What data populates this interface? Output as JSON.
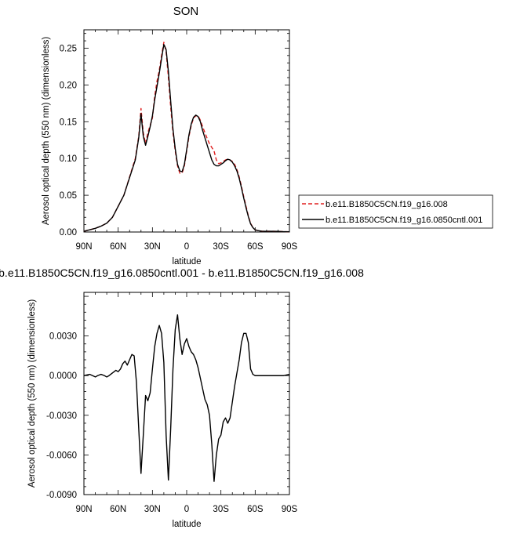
{
  "chart_data": [
    {
      "type": "line",
      "title": "SON",
      "xlabel": "latitude",
      "ylabel": "Aerosol optical depth (550 nm) (dimensionless)",
      "xlim": [
        90,
        -90
      ],
      "ylim": [
        0,
        0.275
      ],
      "x_ticks": [
        90,
        60,
        30,
        0,
        -30,
        -60,
        -90
      ],
      "x_tick_labels": [
        "90N",
        "60N",
        "30N",
        "0",
        "30S",
        "60S",
        "90S"
      ],
      "y_ticks": [
        0,
        0.05,
        0.1,
        0.15,
        0.2,
        0.25
      ],
      "y_tick_labels": [
        "0.00",
        "0.05",
        "0.10",
        "0.15",
        "0.20",
        "0.25"
      ],
      "legend_position": "right, outside plot",
      "series": [
        {
          "name": "b.e11.B1850C5CN.f19_g16.008",
          "color": "#e02020",
          "style": "dashed",
          "x": [
            90,
            85,
            80,
            75,
            70,
            65,
            60,
            55,
            50,
            45,
            42,
            40,
            38,
            36,
            34,
            32,
            30,
            28,
            26,
            24,
            22,
            20,
            18,
            16,
            14,
            12,
            10,
            8,
            6,
            4,
            2,
            0,
            -2,
            -4,
            -6,
            -8,
            -10,
            -12,
            -14,
            -16,
            -18,
            -20,
            -22,
            -24,
            -26,
            -28,
            -30,
            -32,
            -34,
            -36,
            -38,
            -40,
            -42,
            -44,
            -46,
            -48,
            -50,
            -52,
            -54,
            -56,
            -58,
            -60,
            -62,
            -64,
            -66,
            -70,
            -75,
            -80,
            -85,
            -90
          ],
          "y": [
            0.001,
            0.003,
            0.005,
            0.008,
            0.012,
            0.02,
            0.035,
            0.05,
            0.075,
            0.1,
            0.13,
            0.168,
            0.135,
            0.12,
            0.135,
            0.145,
            0.155,
            0.185,
            0.205,
            0.22,
            0.24,
            0.258,
            0.245,
            0.21,
            0.17,
            0.135,
            0.11,
            0.09,
            0.08,
            0.08,
            0.09,
            0.11,
            0.13,
            0.145,
            0.155,
            0.158,
            0.158,
            0.152,
            0.143,
            0.135,
            0.127,
            0.12,
            0.115,
            0.11,
            0.098,
            0.093,
            0.094,
            0.096,
            0.098,
            0.099,
            0.098,
            0.096,
            0.092,
            0.085,
            0.075,
            0.062,
            0.048,
            0.035,
            0.022,
            0.012,
            0.006,
            0.003,
            0.002,
            0.0015,
            0.001,
            0.001,
            0.001,
            0.0008,
            0.0005,
            0.0003
          ]
        },
        {
          "name": "b.e11.B1850C5CN.f19_g16.0850cntl.001",
          "color": "#000000",
          "style": "solid",
          "x": [
            90,
            85,
            80,
            75,
            70,
            65,
            60,
            55,
            50,
            45,
            42,
            40,
            38,
            36,
            34,
            32,
            30,
            28,
            26,
            24,
            22,
            20,
            18,
            16,
            14,
            12,
            10,
            8,
            6,
            4,
            2,
            0,
            -2,
            -4,
            -6,
            -8,
            -10,
            -12,
            -14,
            -16,
            -18,
            -20,
            -22,
            -24,
            -26,
            -28,
            -30,
            -32,
            -34,
            -36,
            -38,
            -40,
            -42,
            -44,
            -46,
            -48,
            -50,
            -52,
            -54,
            -56,
            -58,
            -60,
            -62,
            -64,
            -66,
            -70,
            -75,
            -80,
            -85,
            -90
          ],
          "y": [
            0.001,
            0.003,
            0.005,
            0.008,
            0.012,
            0.02,
            0.035,
            0.05,
            0.074,
            0.098,
            0.128,
            0.161,
            0.13,
            0.118,
            0.13,
            0.143,
            0.158,
            0.18,
            0.198,
            0.216,
            0.236,
            0.255,
            0.248,
            0.218,
            0.178,
            0.14,
            0.113,
            0.092,
            0.083,
            0.082,
            0.092,
            0.112,
            0.132,
            0.147,
            0.156,
            0.159,
            0.157,
            0.15,
            0.138,
            0.128,
            0.118,
            0.108,
            0.098,
            0.092,
            0.09,
            0.09,
            0.092,
            0.094,
            0.097,
            0.099,
            0.098,
            0.095,
            0.09,
            0.083,
            0.073,
            0.06,
            0.046,
            0.033,
            0.021,
            0.011,
            0.006,
            0.003,
            0.002,
            0.0015,
            0.001,
            0.001,
            0.001,
            0.0008,
            0.0005,
            0.0003
          ]
        }
      ]
    },
    {
      "type": "line",
      "title": "b.e11.B1850C5CN.f19_g16.0850cntl.001 - b.e11.B1850C5CN.f19_g16.008",
      "xlabel": "latitude",
      "ylabel": "Aerosol optical depth (550 nm) (dimensionless)",
      "xlim": [
        90,
        -90
      ],
      "ylim": [
        -0.009,
        0.0063
      ],
      "x_ticks": [
        90,
        60,
        30,
        0,
        -30,
        -60,
        -90
      ],
      "x_tick_labels": [
        "90N",
        "60N",
        "30N",
        "0",
        "30S",
        "60S",
        "90S"
      ],
      "y_ticks": [
        -0.009,
        -0.006,
        -0.003,
        0,
        0.003
      ],
      "y_tick_labels": [
        "-0.0090",
        "-0.0060",
        "-0.0030",
        "0.0000",
        "0.0030"
      ],
      "series": [
        {
          "color": "#000000",
          "style": "solid",
          "x": [
            90,
            85,
            80,
            78,
            75,
            72,
            70,
            68,
            65,
            62,
            60,
            58,
            56,
            54,
            52,
            50,
            48,
            46,
            44,
            42,
            40,
            38,
            36,
            34,
            32,
            30,
            28,
            26,
            24,
            22,
            20,
            18,
            16,
            14,
            12,
            10,
            8,
            6,
            4,
            2,
            0,
            -2,
            -4,
            -6,
            -8,
            -10,
            -12,
            -14,
            -16,
            -18,
            -20,
            -22,
            -24,
            -26,
            -28,
            -30,
            -32,
            -34,
            -36,
            -38,
            -40,
            -42,
            -44,
            -46,
            -48,
            -50,
            -52,
            -54,
            -56,
            -58,
            -60,
            -62,
            -65,
            -70,
            -75,
            -80,
            -85,
            -90
          ],
          "y": [
            0.0,
            0.0001,
            -0.0001,
            0.0,
            0.0001,
            0.0,
            -0.0001,
            0.0,
            0.0002,
            0.0004,
            0.0003,
            0.0005,
            0.0009,
            0.0011,
            0.0008,
            0.0012,
            0.0016,
            0.0015,
            -0.0005,
            -0.004,
            -0.0074,
            -0.0045,
            -0.0015,
            -0.0019,
            -0.0013,
            0.0005,
            0.0022,
            0.0032,
            0.0038,
            0.0032,
            0.001,
            -0.0045,
            -0.0079,
            -0.004,
            0.0005,
            0.0035,
            0.0046,
            0.0028,
            0.0016,
            0.0024,
            0.0028,
            0.0022,
            0.0018,
            0.0016,
            0.0012,
            0.0006,
            -0.0002,
            -0.001,
            -0.0018,
            -0.0022,
            -0.003,
            -0.0052,
            -0.008,
            -0.006,
            -0.0048,
            -0.0045,
            -0.0035,
            -0.0032,
            -0.0036,
            -0.0032,
            -0.002,
            -0.0008,
            0.0002,
            0.0012,
            0.0025,
            0.0032,
            0.0032,
            0.0025,
            0.0005,
            0.0001,
            0.0,
            0.0,
            0.0,
            0.0,
            0.0,
            0.0,
            0.0,
            0.0001
          ]
        }
      ]
    }
  ]
}
